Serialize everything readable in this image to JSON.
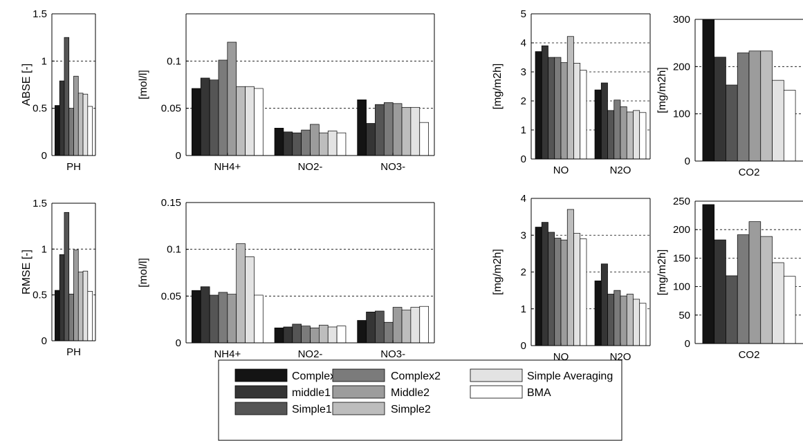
{
  "colors": {
    "Complex1": "#141414",
    "middle1": "#353535",
    "Simple1": "#555555",
    "Complex2": "#7b7b7b",
    "Middle2": "#9c9c9c",
    "Simple2": "#bdbdbd",
    "Simple Averaging": "#e3e3e3",
    "BMA": "#ffffff"
  },
  "legend": {
    "entries": [
      "Complex1",
      "middle1",
      "Simple1",
      "Complex2",
      "Middle2",
      "Simple2",
      "Simple Averaging",
      "BMA"
    ]
  },
  "chart_data": [
    {
      "type": "bar",
      "row": "ABSE",
      "ylabel": "ABSE [-]",
      "ylim": [
        0,
        1.5
      ],
      "yticks": [
        0,
        0.5,
        1,
        1.5
      ],
      "ytick_labels": [
        "0",
        "0.5",
        "1",
        "1.5"
      ],
      "grid": "dashed",
      "categories": [
        "PH"
      ],
      "series": [
        {
          "name": "Complex1",
          "values": [
            0.53
          ]
        },
        {
          "name": "middle1",
          "values": [
            0.79
          ]
        },
        {
          "name": "Simple1",
          "values": [
            1.25
          ]
        },
        {
          "name": "Complex2",
          "values": [
            0.5
          ]
        },
        {
          "name": "Middle2",
          "values": [
            0.84
          ]
        },
        {
          "name": "Simple2",
          "values": [
            0.66
          ]
        },
        {
          "name": "Simple Averaging",
          "values": [
            0.65
          ]
        },
        {
          "name": "BMA",
          "values": [
            0.52
          ]
        }
      ]
    },
    {
      "type": "bar",
      "row": "ABSE",
      "ylabel": "[mol/l]",
      "ylim": [
        0,
        0.15
      ],
      "yticks": [
        0,
        0.05,
        0.1
      ],
      "ytick_labels": [
        "0",
        "0.05",
        "0.1"
      ],
      "grid": "dashed",
      "categories": [
        "NH4+",
        "NO2-",
        "NO3-"
      ],
      "series": [
        {
          "name": "Complex1",
          "values": [
            0.071,
            0.029,
            0.059
          ]
        },
        {
          "name": "middle1",
          "values": [
            0.082,
            0.025,
            0.034
          ]
        },
        {
          "name": "Simple1",
          "values": [
            0.08,
            0.024,
            0.054
          ]
        },
        {
          "name": "Complex2",
          "values": [
            0.101,
            0.027,
            0.056
          ]
        },
        {
          "name": "Middle2",
          "values": [
            0.12,
            0.033,
            0.055
          ]
        },
        {
          "name": "Simple2",
          "values": [
            0.073,
            0.024,
            0.051
          ]
        },
        {
          "name": "Simple Averaging",
          "values": [
            0.073,
            0.026,
            0.051
          ]
        },
        {
          "name": "BMA",
          "values": [
            0.071,
            0.024,
            0.035
          ]
        }
      ]
    },
    {
      "type": "bar",
      "row": "ABSE",
      "ylabel": "[mg/m2h]",
      "ylim": [
        0,
        5
      ],
      "yticks": [
        0,
        1,
        2,
        3,
        4,
        5
      ],
      "ytick_labels": [
        "0",
        "1",
        "2",
        "3",
        "4",
        "5"
      ],
      "grid": "dashed",
      "categories": [
        "NO",
        "N2O"
      ],
      "series": [
        {
          "name": "Complex1",
          "values": [
            3.7,
            2.38
          ]
        },
        {
          "name": "middle1",
          "values": [
            3.9,
            2.62
          ]
        },
        {
          "name": "Simple1",
          "values": [
            3.5,
            1.67
          ]
        },
        {
          "name": "Complex2",
          "values": [
            3.5,
            2.03
          ]
        },
        {
          "name": "Middle2",
          "values": [
            3.32,
            1.8
          ]
        },
        {
          "name": "Simple2",
          "values": [
            4.22,
            1.62
          ]
        },
        {
          "name": "Simple Averaging",
          "values": [
            3.3,
            1.67
          ]
        },
        {
          "name": "BMA",
          "values": [
            3.06,
            1.6
          ]
        }
      ]
    },
    {
      "type": "bar",
      "row": "ABSE",
      "ylabel": "[mg/m2h]",
      "ylim": [
        0,
        300
      ],
      "yticks": [
        0,
        100,
        200,
        300
      ],
      "ytick_labels": [
        "0",
        "100",
        "200",
        "300"
      ],
      "grid": "dashed",
      "categories": [
        "CO2"
      ],
      "series": [
        {
          "name": "Complex1",
          "values": [
            300
          ]
        },
        {
          "name": "middle1",
          "values": [
            220
          ]
        },
        {
          "name": "Simple1",
          "values": [
            161
          ]
        },
        {
          "name": "Complex2",
          "values": [
            229
          ]
        },
        {
          "name": "Middle2",
          "values": [
            233
          ]
        },
        {
          "name": "Simple2",
          "values": [
            233
          ]
        },
        {
          "name": "Simple Averaging",
          "values": [
            171
          ]
        },
        {
          "name": "BMA",
          "values": [
            150
          ]
        }
      ]
    },
    {
      "type": "bar",
      "row": "RMSE",
      "ylabel": "RMSE [-]",
      "ylim": [
        0,
        1.5
      ],
      "yticks": [
        0,
        0.5,
        1,
        1.5
      ],
      "ytick_labels": [
        "0",
        "0.5",
        "1",
        "1.5"
      ],
      "grid": "dashed",
      "categories": [
        "PH"
      ],
      "series": [
        {
          "name": "Complex1",
          "values": [
            0.55
          ]
        },
        {
          "name": "middle1",
          "values": [
            0.94
          ]
        },
        {
          "name": "Simple1",
          "values": [
            1.4
          ]
        },
        {
          "name": "Complex2",
          "values": [
            0.51
          ]
        },
        {
          "name": "Middle2",
          "values": [
            0.99
          ]
        },
        {
          "name": "Simple2",
          "values": [
            0.75
          ]
        },
        {
          "name": "Simple Averaging",
          "values": [
            0.76
          ]
        },
        {
          "name": "BMA",
          "values": [
            0.54
          ]
        }
      ]
    },
    {
      "type": "bar",
      "row": "RMSE",
      "ylabel": "[mol/l]",
      "ylim": [
        0,
        0.15
      ],
      "yticks": [
        0,
        0.05,
        0.1,
        0.15
      ],
      "ytick_labels": [
        "0",
        "0.05",
        "0.1",
        "0.15"
      ],
      "grid": "dashed",
      "categories": [
        "NH4+",
        "NO2-",
        "NO3-"
      ],
      "series": [
        {
          "name": "Complex1",
          "values": [
            0.056,
            0.016,
            0.024
          ]
        },
        {
          "name": "middle1",
          "values": [
            0.06,
            0.017,
            0.033
          ]
        },
        {
          "name": "Simple1",
          "values": [
            0.051,
            0.02,
            0.034
          ]
        },
        {
          "name": "Complex2",
          "values": [
            0.054,
            0.018,
            0.022
          ]
        },
        {
          "name": "Middle2",
          "values": [
            0.052,
            0.016,
            0.038
          ]
        },
        {
          "name": "Simple2",
          "values": [
            0.106,
            0.019,
            0.035
          ]
        },
        {
          "name": "Simple Averaging",
          "values": [
            0.092,
            0.017,
            0.038
          ]
        },
        {
          "name": "BMA",
          "values": [
            0.051,
            0.018,
            0.039
          ]
        }
      ]
    },
    {
      "type": "bar",
      "row": "RMSE",
      "ylabel": "[mg/m2h]",
      "ylim": [
        0,
        4
      ],
      "yticks": [
        0,
        1,
        2,
        3,
        4
      ],
      "ytick_labels": [
        "0",
        "1",
        "2",
        "3",
        "4"
      ],
      "grid": "dashed",
      "categories": [
        "NO",
        "N2O"
      ],
      "series": [
        {
          "name": "Complex1",
          "values": [
            3.22,
            1.76
          ]
        },
        {
          "name": "middle1",
          "values": [
            3.35,
            2.22
          ]
        },
        {
          "name": "Simple1",
          "values": [
            3.08,
            1.4
          ]
        },
        {
          "name": "Complex2",
          "values": [
            2.92,
            1.5
          ]
        },
        {
          "name": "Middle2",
          "values": [
            2.87,
            1.35
          ]
        },
        {
          "name": "Simple2",
          "values": [
            3.7,
            1.4
          ]
        },
        {
          "name": "Simple Averaging",
          "values": [
            3.05,
            1.26
          ]
        },
        {
          "name": "BMA",
          "values": [
            2.9,
            1.15
          ]
        }
      ]
    },
    {
      "type": "bar",
      "row": "RMSE",
      "ylabel": "[mg/m2h]",
      "ylim": [
        0,
        250
      ],
      "yticks": [
        0,
        50,
        100,
        150,
        200,
        250
      ],
      "ytick_labels": [
        "0",
        "50",
        "100",
        "150",
        "200",
        "250"
      ],
      "grid": "dashed",
      "categories": [
        "CO2"
      ],
      "series": [
        {
          "name": "Complex1",
          "values": [
            244
          ]
        },
        {
          "name": "middle1",
          "values": [
            182
          ]
        },
        {
          "name": "Simple1",
          "values": [
            119
          ]
        },
        {
          "name": "Complex2",
          "values": [
            191
          ]
        },
        {
          "name": "Middle2",
          "values": [
            214
          ]
        },
        {
          "name": "Simple2",
          "values": [
            188
          ]
        },
        {
          "name": "Simple Averaging",
          "values": [
            142
          ]
        },
        {
          "name": "BMA",
          "values": [
            118
          ]
        }
      ]
    }
  ]
}
